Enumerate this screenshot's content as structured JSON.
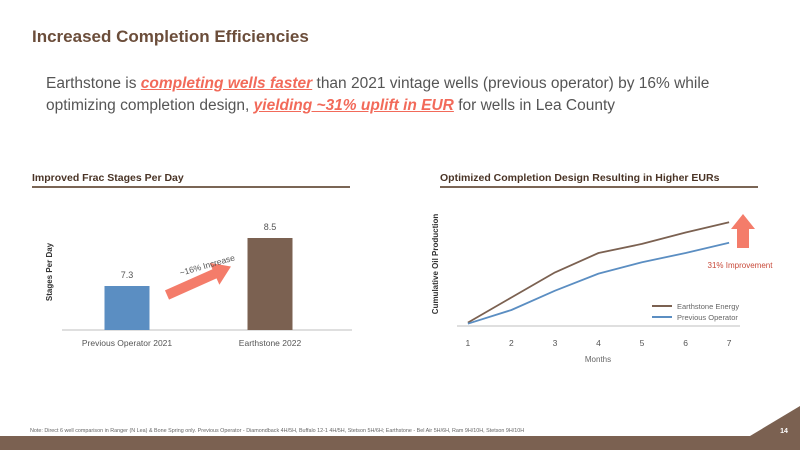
{
  "slide": {
    "title": "Increased Completion Efficiencies",
    "subtitle": {
      "part1": "Earthstone is ",
      "hl1": "completing wells faster",
      "part2": " than 2021 vintage wells (previous operator) by 16% while optimizing completion design, ",
      "hl2": "yielding ~31% uplift in EUR",
      "part3": " for wells in Lea County"
    },
    "note": "Note: Direct 6 well comparison in Ranger (N Lea) & Bone Spring only. Previous Operator - Diamondback 4H/5H, Buffalo 12-1 4H/5H, Stetson 5H/6H; Earthstone - Bel Air 5H/6H, Ram 9H/10H, Stetson 9H/10H",
    "page_number": "14"
  },
  "colors": {
    "title": "#6b4d3a",
    "accent": "#f26a5a",
    "earthstone": "#7b6151",
    "previous": "#5b8ec2",
    "arrow": "#f47c6a"
  },
  "chart_data": [
    {
      "type": "bar",
      "title": "Improved Frac Stages Per Day",
      "ylabel": "Stages Per Day",
      "categories": [
        "Previous Operator 2021",
        "Earthstone 2022"
      ],
      "values": [
        7.3,
        8.5
      ],
      "data_labels": [
        "7.3",
        "8.5"
      ],
      "ylim": [
        6.2,
        9.2
      ],
      "bar_colors": [
        "#5b8ec2",
        "#7b6151"
      ],
      "annotation": "~16% Increase"
    },
    {
      "type": "line",
      "title": "Optimized Completion Design Resulting in Higher EURs",
      "xlabel": "Months",
      "ylabel": "Cumulative Oil Production",
      "x": [
        1,
        2,
        3,
        4,
        5,
        6,
        7
      ],
      "xlim": [
        0.75,
        7.25
      ],
      "ylim": [
        0,
        10
      ],
      "series": [
        {
          "name": "Earthstone Energy",
          "color": "#7b6151",
          "values": [
            0.3,
            2.5,
            4.7,
            6.4,
            7.2,
            8.2,
            9.1
          ]
        },
        {
          "name": "Previous Operator",
          "color": "#5b8ec2",
          "values": [
            0.2,
            1.4,
            3.1,
            4.6,
            5.6,
            6.4,
            7.3
          ]
        }
      ],
      "annotation": "31% Improvement",
      "legend": "bottom-right",
      "grid": false
    }
  ]
}
